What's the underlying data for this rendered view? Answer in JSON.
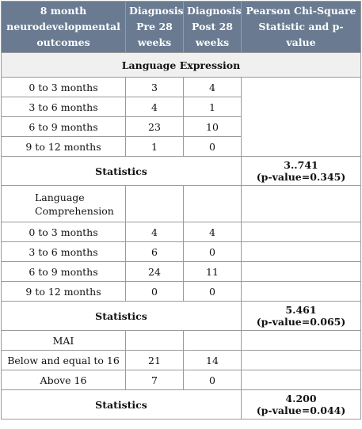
{
  "headers": [
    "8 month neurodevelopmental outcomes",
    "Diagnosis Pre 28 weeks",
    "Diagnosis Post 28 weeks",
    "Pearson Chi-Square Statistic and p-value"
  ],
  "section1": {
    "title": "Language Expression",
    "rows": [
      {
        "label": "0 to 3 months",
        "pre": "3",
        "post": "4"
      },
      {
        "label": "3 to 6 months",
        "pre": "4",
        "post": "1"
      },
      {
        "label": "6 to 9 months",
        "pre": "23",
        "post": "10"
      },
      {
        "label": "9 to 12 months",
        "pre": "1",
        "post": "0"
      }
    ],
    "stats_label": "Statistics",
    "stats_value": "3..741",
    "stats_p": "(p-value=0.345)"
  },
  "section2": {
    "title": "Language Comprehension",
    "rows": [
      {
        "label": "0 to 3 months",
        "pre": "4",
        "post": "4"
      },
      {
        "label": "3 to 6 months",
        "pre": "6",
        "post": "0"
      },
      {
        "label": "6 to 9 months",
        "pre": "24",
        "post": "11"
      },
      {
        "label": "9 to 12 months",
        "pre": "0",
        "post": "0"
      }
    ],
    "stats_label": "Statistics",
    "stats_value": "5.461",
    "stats_p": "(p-value=0.065)"
  },
  "section3": {
    "title": "MAI",
    "rows": [
      {
        "label": "Below and equal to 16",
        "pre": "21",
        "post": "14"
      },
      {
        "label": "Above 16",
        "pre": "7",
        "post": "0"
      }
    ],
    "stats_label": "Statistics",
    "stats_value": "4.200",
    "stats_p": "(p-value=0.044)"
  },
  "colors": {
    "header_bg": "#6a7b91",
    "section_bg": "#f0f0f0",
    "border": "#9a9a9a"
  }
}
